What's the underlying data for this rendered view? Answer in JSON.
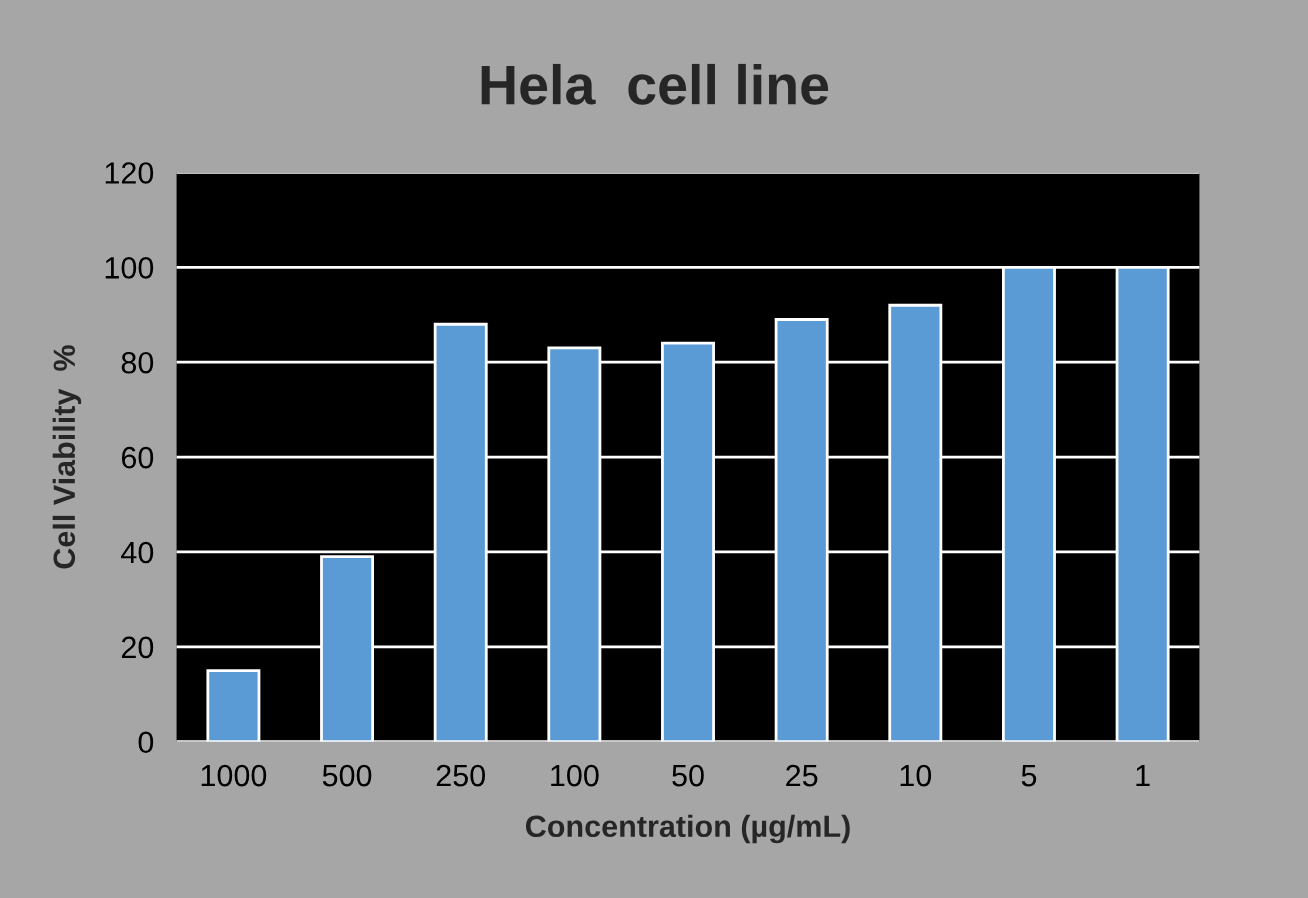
{
  "chart_data": {
    "type": "bar",
    "title": "Hela  cell line",
    "xlabel": "Concentration (µg/mL)",
    "ylabel": "Cell Viability  %",
    "categories": [
      "1000",
      "500",
      "250",
      "100",
      "50",
      "25",
      "10",
      "5",
      "1"
    ],
    "values": [
      15,
      39,
      88,
      83,
      84,
      89,
      92,
      100,
      100
    ],
    "color": "#5b9bd5",
    "ylim": [
      0,
      120
    ],
    "yticks": [
      0,
      20,
      40,
      60,
      80,
      100,
      120
    ],
    "grid": "y",
    "legend": false
  }
}
